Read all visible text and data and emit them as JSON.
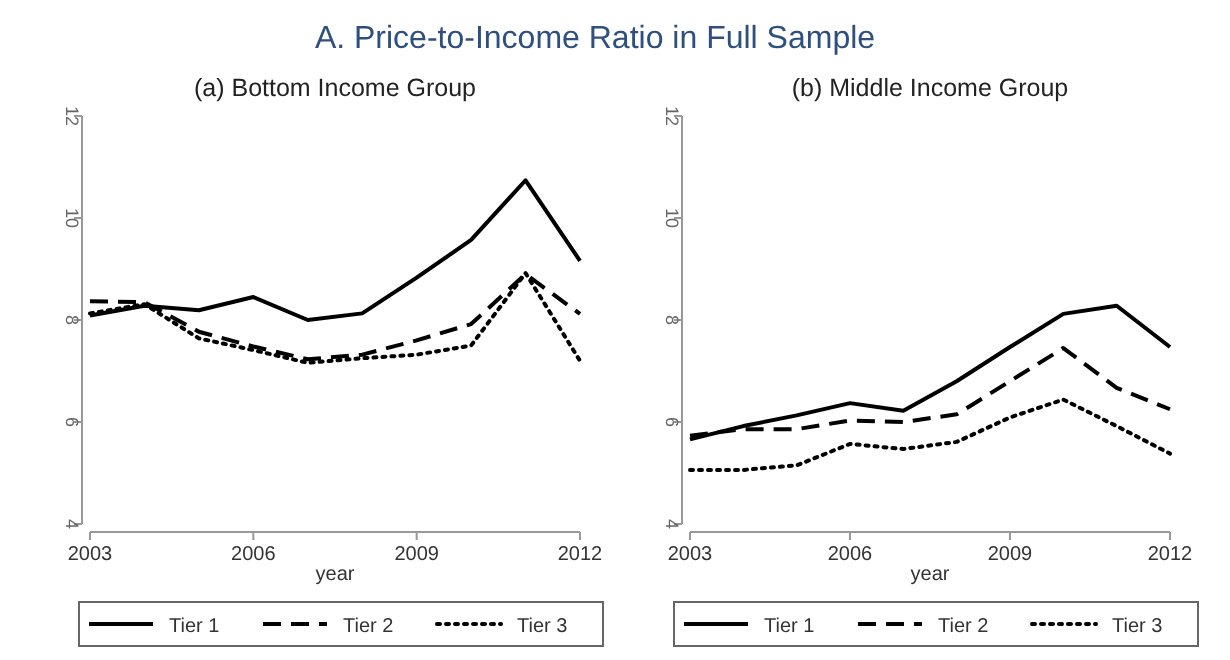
{
  "chart_data": [
    {
      "type": "line",
      "title": "A. Price-to-Income Ratio in Full Sample",
      "subtitle": "(a) Bottom Income Group",
      "xlabel": "year",
      "x": [
        2003,
        2004,
        2005,
        2006,
        2007,
        2008,
        2009,
        2010,
        2011,
        2012
      ],
      "xlim": [
        2003,
        2012
      ],
      "xticks": [
        2003,
        2006,
        2009,
        2012
      ],
      "ylim": [
        4,
        12
      ],
      "yticks": [
        4,
        6,
        8,
        10,
        12
      ],
      "legend": "bottom",
      "grid": false,
      "series": [
        {
          "name": "Tier 1",
          "color": "#000000",
          "line_style": "solid",
          "values": [
            8.09,
            8.28,
            8.19,
            8.45,
            8.0,
            8.13,
            8.83,
            9.57,
            10.74,
            9.16
          ]
        },
        {
          "name": "Tier 2",
          "color": "#000000",
          "line_style": "dashed",
          "values": [
            8.37,
            8.35,
            7.77,
            7.48,
            7.23,
            7.32,
            7.6,
            7.92,
            8.9,
            8.12
          ]
        },
        {
          "name": "Tier 3",
          "color": "#000000",
          "line_style": "dotted",
          "values": [
            8.13,
            8.31,
            7.64,
            7.41,
            7.16,
            7.25,
            7.32,
            7.5,
            8.92,
            7.2
          ]
        }
      ]
    },
    {
      "type": "line",
      "subtitle": "(b) Middle Income Group",
      "xlabel": "year",
      "x": [
        2003,
        2004,
        2005,
        2006,
        2007,
        2008,
        2009,
        2010,
        2011,
        2012
      ],
      "xlim": [
        2003,
        2012
      ],
      "xticks": [
        2003,
        2006,
        2009,
        2012
      ],
      "ylim": [
        4,
        12
      ],
      "yticks": [
        4,
        6,
        8,
        10,
        12
      ],
      "legend": "bottom",
      "grid": false,
      "series": [
        {
          "name": "Tier 1",
          "color": "#000000",
          "line_style": "solid",
          "values": [
            5.66,
            5.92,
            6.13,
            6.37,
            6.22,
            6.8,
            7.47,
            8.12,
            8.28,
            7.47
          ]
        },
        {
          "name": "Tier 2",
          "color": "#000000",
          "line_style": "dashed",
          "values": [
            5.73,
            5.86,
            5.86,
            6.03,
            6.0,
            6.15,
            6.8,
            7.45,
            6.67,
            6.25
          ]
        },
        {
          "name": "Tier 3",
          "color": "#000000",
          "line_style": "dotted",
          "values": [
            5.06,
            5.06,
            5.15,
            5.57,
            5.47,
            5.61,
            6.09,
            6.44,
            5.92,
            5.38
          ]
        }
      ]
    }
  ]
}
